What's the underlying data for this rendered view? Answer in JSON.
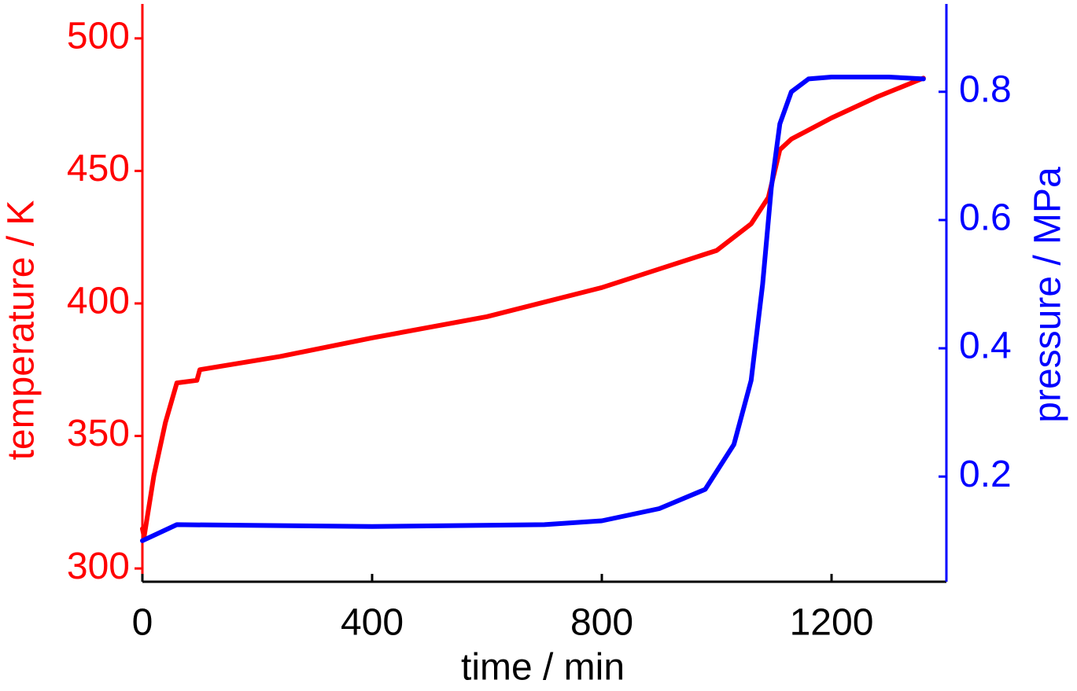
{
  "chart_data": {
    "type": "line",
    "x_label": "time / min",
    "y_label": "temperature / K",
    "y2_label": "pressure / MPa",
    "xlim": [
      0,
      1400
    ],
    "xticks": [
      0,
      400,
      800,
      1200
    ],
    "ylim": [
      295,
      513
    ],
    "yticks": [
      300,
      350,
      400,
      450,
      500
    ],
    "y_color": "#ff0000",
    "y2lim": [
      0.036,
      0.937
    ],
    "y2ticks": [
      0.2,
      0.4,
      0.6,
      0.8
    ],
    "y2_color": "#0000ff",
    "series": [
      {
        "name": "temperature",
        "color": "#ff0000",
        "axis": "y",
        "x": [
          0,
          3,
          20,
          40,
          60,
          95,
          100,
          240,
          400,
          600,
          800,
          900,
          1000,
          1060,
          1090,
          1110,
          1130,
          1200,
          1280,
          1360
        ],
        "values": [
          315,
          312,
          335,
          355,
          370,
          371,
          375,
          380,
          387,
          395,
          406,
          413,
          420,
          430,
          440,
          458,
          462,
          470,
          478,
          485
        ]
      },
      {
        "name": "pressure",
        "color": "#0000ff",
        "axis": "y2",
        "x": [
          0,
          60,
          400,
          700,
          800,
          900,
          980,
          1030,
          1060,
          1080,
          1095,
          1110,
          1130,
          1160,
          1200,
          1300,
          1360
        ],
        "values": [
          0.1,
          0.125,
          0.122,
          0.125,
          0.131,
          0.15,
          0.18,
          0.25,
          0.35,
          0.5,
          0.65,
          0.75,
          0.8,
          0.82,
          0.823,
          0.823,
          0.82
        ]
      }
    ]
  }
}
